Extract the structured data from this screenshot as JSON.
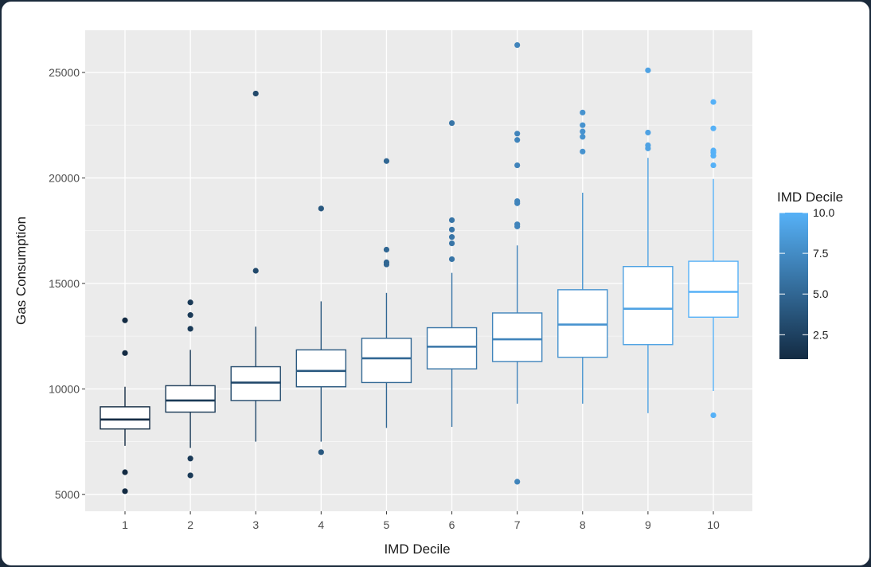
{
  "chart_data": {
    "type": "boxplot",
    "xlabel": "IMD Decile",
    "ylabel": "Gas Consumption",
    "ylim": [
      4200,
      27000
    ],
    "y_ticks": [
      5000,
      10000,
      15000,
      20000,
      25000
    ],
    "y_tick_labels": [
      "5000",
      "10000",
      "15000",
      "20000",
      "25000"
    ],
    "categories": [
      "1",
      "2",
      "3",
      "4",
      "5",
      "6",
      "7",
      "8",
      "9",
      "10"
    ],
    "boxes": [
      {
        "x": "1",
        "whisker_low": 7300,
        "q1": 8100,
        "median": 8550,
        "q3": 9150,
        "whisker_high": 10100,
        "outliers": [
          13250,
          11700,
          6050,
          5150
        ]
      },
      {
        "x": "2",
        "whisker_low": 7200,
        "q1": 8900,
        "median": 9450,
        "q3": 10150,
        "whisker_high": 11850,
        "outliers": [
          14100,
          13500,
          12850,
          6700,
          5900
        ]
      },
      {
        "x": "3",
        "whisker_low": 7500,
        "q1": 9450,
        "median": 10300,
        "q3": 11050,
        "whisker_high": 12950,
        "outliers": [
          24000,
          15600
        ]
      },
      {
        "x": "4",
        "whisker_low": 7500,
        "q1": 10100,
        "median": 10850,
        "q3": 11850,
        "whisker_high": 14150,
        "outliers": [
          18550,
          7000
        ]
      },
      {
        "x": "5",
        "whisker_low": 8150,
        "q1": 10300,
        "median": 11450,
        "q3": 12400,
        "whisker_high": 14550,
        "outliers": [
          20800,
          16600,
          16000,
          15900
        ]
      },
      {
        "x": "6",
        "whisker_low": 8200,
        "q1": 10950,
        "median": 12000,
        "q3": 12900,
        "whisker_high": 15500,
        "outliers": [
          22600,
          18000,
          17550,
          17200,
          16900,
          16150
        ]
      },
      {
        "x": "7",
        "whisker_low": 9300,
        "q1": 11300,
        "median": 12350,
        "q3": 13600,
        "whisker_high": 16800,
        "outliers": [
          26300,
          22100,
          21800,
          20600,
          18900,
          18800,
          17800,
          17700,
          5600
        ]
      },
      {
        "x": "8",
        "whisker_low": 9300,
        "q1": 11500,
        "median": 13050,
        "q3": 14700,
        "whisker_high": 19300,
        "outliers": [
          23100,
          22500,
          22200,
          21950,
          21250
        ]
      },
      {
        "x": "9",
        "whisker_low": 8850,
        "q1": 12100,
        "median": 13800,
        "q3": 15800,
        "whisker_high": 20950,
        "outliers": [
          25100,
          22150,
          21550,
          21400
        ]
      },
      {
        "x": "10",
        "whisker_low": 9900,
        "q1": 13400,
        "median": 14600,
        "q3": 16050,
        "whisker_high": 19950,
        "outliers": [
          23600,
          22350,
          21300,
          21200,
          21050,
          20600,
          8750
        ]
      }
    ],
    "color_scale": {
      "title": "IMD Decile",
      "range": [
        1,
        10
      ],
      "low_color": "#132b43",
      "high_color": "#56b1f7",
      "breaks": [
        10.0,
        7.5,
        5.0,
        2.5
      ],
      "break_labels": [
        "10.0",
        "7.5",
        "5.0",
        "2.5"
      ]
    },
    "legend_position": "right",
    "grid": true,
    "panel_background": "#ebebeb"
  }
}
